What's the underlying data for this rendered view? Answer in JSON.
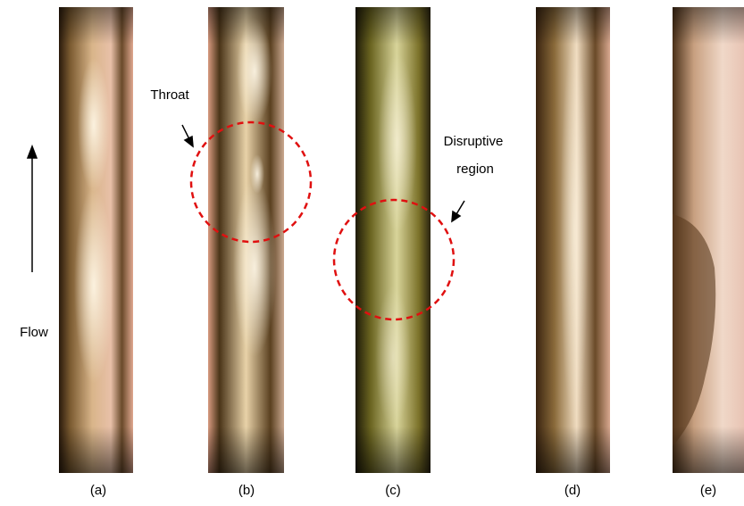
{
  "annotations": {
    "throat": "Throat",
    "disruptive": [
      "Disruptive",
      "region"
    ],
    "flow": "Flow"
  },
  "panels": [
    {
      "label": "(a)"
    },
    {
      "label": "(b)"
    },
    {
      "label": "(c)"
    },
    {
      "label": "(d)"
    },
    {
      "label": "(e)"
    }
  ]
}
